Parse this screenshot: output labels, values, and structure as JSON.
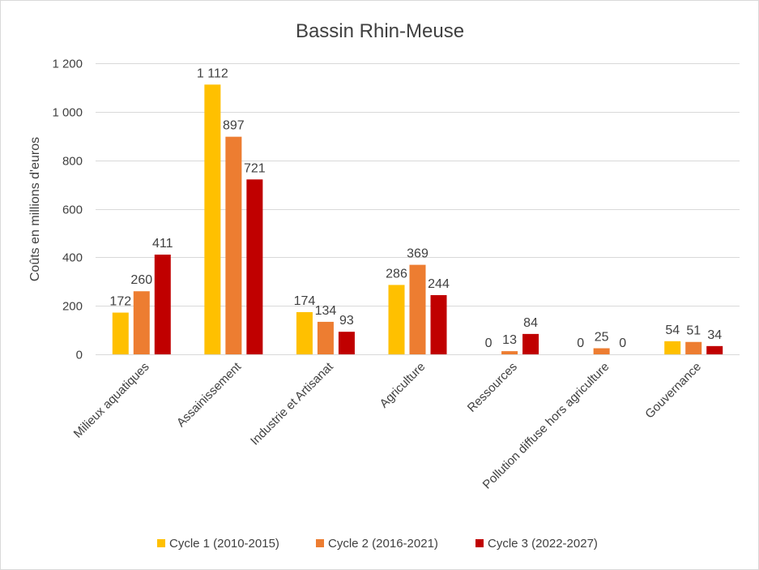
{
  "chart_data": {
    "type": "bar",
    "title": "Bassin Rhin-Meuse",
    "xlabel": "",
    "ylabel": "Coûts en millions d'euros",
    "ylim": [
      0,
      1200
    ],
    "yticks": [
      0,
      200,
      400,
      600,
      800,
      1000,
      1200
    ],
    "ytick_labels": [
      "0",
      "200",
      "400",
      "600",
      "800",
      "1 000",
      "1 200"
    ],
    "grid": true,
    "legend_position": "bottom",
    "categories": [
      "Milieux aquatiques",
      "Assainissement",
      "Industrie et Artisanat",
      "Agriculture",
      "Ressources",
      "Pollution diffuse hors agriculture",
      "Gouvernance"
    ],
    "series": [
      {
        "name": "Cycle 1 (2010-2015)",
        "color": "#FFC000",
        "values": [
          172,
          1112,
          174,
          286,
          0,
          0,
          54
        ],
        "labels": [
          "172",
          "1 112",
          "174",
          "286",
          "0",
          "0",
          "54"
        ]
      },
      {
        "name": "Cycle 2 (2016-2021)",
        "color": "#ED7D31",
        "values": [
          260,
          897,
          134,
          369,
          13,
          25,
          51
        ],
        "labels": [
          "260",
          "897",
          "134",
          "369",
          "13",
          "25",
          "51"
        ]
      },
      {
        "name": "Cycle 3 (2022-2027)",
        "color": "#C00000",
        "values": [
          411,
          721,
          93,
          244,
          84,
          0,
          34
        ],
        "labels": [
          "411",
          "721",
          "93",
          "244",
          "84",
          "0",
          "34"
        ]
      }
    ]
  }
}
